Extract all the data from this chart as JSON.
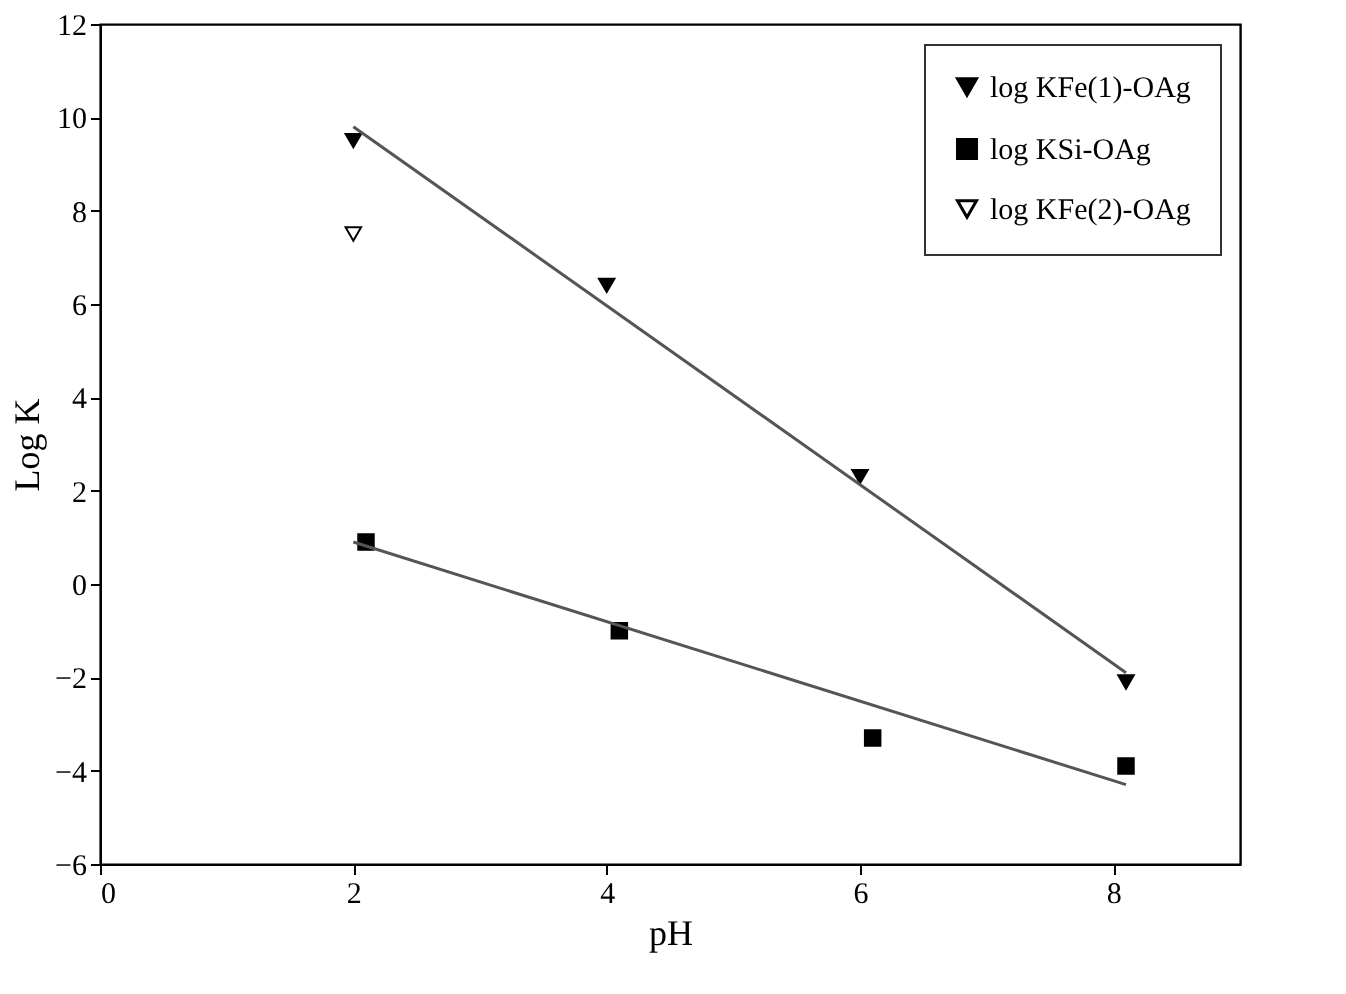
{
  "chart_data": {
    "type": "scatter",
    "xlabel": "pH",
    "ylabel": "Log K",
    "xlim": [
      0,
      9
    ],
    "ylim": [
      -6,
      12
    ],
    "xticks": [
      0,
      2,
      4,
      6,
      8
    ],
    "yticks": [
      -6,
      -4,
      -2,
      0,
      2,
      4,
      6,
      8,
      10,
      12
    ],
    "grid": false,
    "legend": "top right",
    "series": [
      {
        "name": "log KFe(1)-OAg",
        "color": "#000000",
        "marker": "triangle-down",
        "x": [
          2,
          4,
          6,
          8.1
        ],
        "values": [
          9.5,
          6.4,
          2.3,
          -2.1
        ]
      },
      {
        "name": "log KSi-OAg",
        "color": "#000000",
        "marker": "square",
        "x": [
          2.1,
          4.1,
          6.1,
          8.1
        ],
        "values": [
          0.9,
          -1.0,
          -3.3,
          -3.9
        ]
      },
      {
        "name": "log KFe(2)-OAg",
        "color": "#000000",
        "marker": "triangle-down-open",
        "x": [
          2
        ],
        "values": [
          7.5
        ]
      },
      {
        "type": "line",
        "color": "#555555",
        "x": [
          2,
          8.1
        ],
        "values": [
          9.8,
          -1.9
        ]
      },
      {
        "type": "line",
        "color": "#555555",
        "x": [
          2,
          8.1
        ],
        "values": [
          0.9,
          -4.3
        ]
      }
    ]
  }
}
